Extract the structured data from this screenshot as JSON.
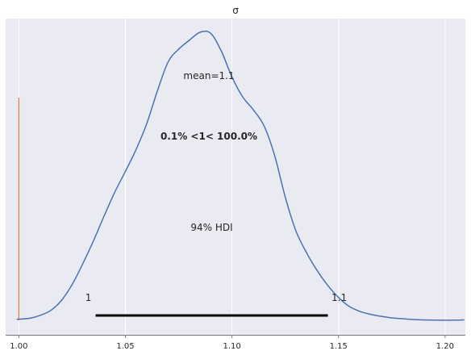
{
  "chart_data": {
    "type": "area",
    "title": "σ",
    "xlabel": "",
    "ylabel": "",
    "xlim": [
      0.9938,
      1.2095
    ],
    "x_ticks": [
      1.0,
      1.05,
      1.1,
      1.15,
      1.2
    ],
    "x_tick_labels": [
      "1.00",
      "1.05",
      "1.10",
      "1.15",
      "1.20"
    ],
    "grid": true,
    "legend": "none",
    "colors": {
      "density": "#4c72b0",
      "reference": "#dd8452",
      "hdi": "#000000",
      "background": "#eaeaf2",
      "grid": "#ffffff"
    },
    "series": [
      {
        "x": [
          0.999,
          1.005,
          1.01,
          1.015,
          1.02,
          1.025,
          1.03,
          1.035,
          1.04,
          1.045,
          1.05,
          1.055,
          1.06,
          1.065,
          1.07,
          1.075,
          1.08,
          1.085,
          1.09,
          1.095,
          1.1,
          1.105,
          1.11,
          1.115,
          1.12,
          1.125,
          1.13,
          1.135,
          1.14,
          1.145,
          1.15,
          1.155,
          1.16,
          1.165,
          1.17,
          1.175,
          1.18,
          1.185,
          1.19,
          1.195,
          1.2,
          1.205,
          1.209
        ],
        "values": [
          0.005,
          0.01,
          0.025,
          0.05,
          0.1,
          0.18,
          0.285,
          0.4,
          0.525,
          0.645,
          0.75,
          0.86,
          0.99,
          1.155,
          1.3,
          1.365,
          1.41,
          1.45,
          1.445,
          1.355,
          1.225,
          1.125,
          1.06,
          0.98,
          0.83,
          0.62,
          0.45,
          0.34,
          0.25,
          0.175,
          0.115,
          0.07,
          0.045,
          0.03,
          0.02,
          0.012,
          0.008,
          0.004,
          0.002,
          0.001,
          0.0005,
          0.001,
          0.002
        ]
      }
    ],
    "reference_value": 1,
    "reference_label": "0.1% <1< 100.0%",
    "mean_label": "mean=1.1",
    "hdi": {
      "low": 1.036,
      "high": 1.145,
      "low_label": "1",
      "high_label": "1.1",
      "label": "94% HDI"
    }
  }
}
